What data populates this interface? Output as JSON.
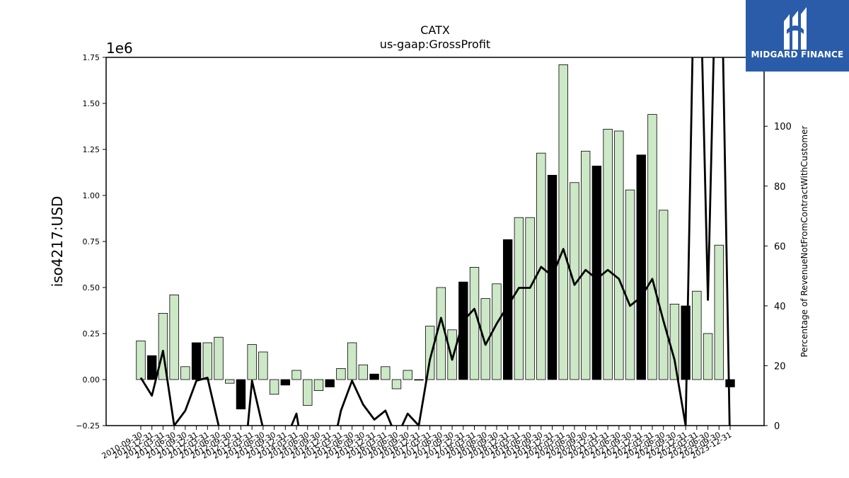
{
  "chart_data": {
    "type": "bar",
    "title": "CATX",
    "subtitle": "us-gaap:GrossProfit",
    "ylabel": "iso4217:USD",
    "y_offset_label": "1e6",
    "y2label": "Percentage of RevenueNotFromContractWithCustomer",
    "ylim": [
      -0.25,
      1.75
    ],
    "y2lim": [
      0,
      123
    ],
    "yticks": [
      "−0.25",
      "0.00",
      "0.25",
      "0.50",
      "0.75",
      "1.00",
      "1.25",
      "1.50",
      "1.75"
    ],
    "y2ticks": [
      "0",
      "20",
      "40",
      "60",
      "80",
      "100"
    ],
    "grid": false,
    "categories": [
      "2010-09-30",
      "2010-12-31",
      "2011-03-31",
      "2011-06-30",
      "2011-09-30",
      "2011-12-31",
      "2012-03-31",
      "2012-06-30",
      "2012-09-30",
      "2012-12-31",
      "2013-03-31",
      "2013-06-30",
      "2013-09-30",
      "2013-12-31",
      "2014-03-31",
      "2014-06-30",
      "2014-09-30",
      "2014-12-31",
      "2015-03-31",
      "2015-06-30",
      "2015-09-30",
      "2015-12-31",
      "2016-03-31",
      "2016-06-30",
      "2016-09-30",
      "2016-12-31",
      "2017-03-31",
      "2017-06-30",
      "2017-09-30",
      "2017-12-31",
      "2018-03-31",
      "2018-06-30",
      "2018-09-30",
      "2018-12-31",
      "2019-03-31",
      "2019-06-30",
      "2019-09-30",
      "2019-12-31",
      "2020-03-31",
      "2020-06-30",
      "2020-09-30",
      "2020-12-31",
      "2021-03-31",
      "2021-06-30",
      "2021-09-30",
      "2021-12-31",
      "2022-03-31",
      "2022-06-30",
      "2022-09-30",
      "2022-12-31",
      "2023-03-31",
      "2023-06-30",
      "2023-09-30",
      "2023-12-31"
    ],
    "values": [
      0.21,
      0.13,
      0.36,
      0.46,
      0.07,
      0.2,
      0.2,
      0.23,
      -0.02,
      -0.16,
      0.19,
      0.15,
      -0.08,
      -0.03,
      0.05,
      -0.14,
      -0.06,
      -0.04,
      0.06,
      0.2,
      0.08,
      0.03,
      0.07,
      -0.05,
      0.05,
      0.0,
      0.29,
      0.5,
      0.27,
      0.53,
      0.61,
      0.44,
      0.52,
      0.76,
      0.88,
      0.88,
      1.23,
      1.11,
      1.71,
      1.07,
      1.24,
      1.16,
      1.36,
      1.35,
      1.03,
      1.22,
      1.44,
      0.92,
      0.41,
      0.4,
      0.48,
      0.25,
      0.73,
      -0.04
    ],
    "highlight_indices": [
      1,
      5,
      9,
      13,
      17,
      21,
      29,
      33,
      37,
      41,
      45,
      49,
      53
    ],
    "bar_color": "#cce8c6",
    "highlight_color": "#000000",
    "line_color": "#000000",
    "line_series": [
      16,
      10,
      25,
      0,
      5,
      15,
      16,
      0,
      -10,
      -25,
      15,
      -1,
      -8,
      -5,
      4,
      -18,
      -15,
      -12,
      5,
      15,
      7,
      2,
      5,
      -4,
      4,
      0,
      22,
      36,
      22,
      35,
      39,
      27,
      34,
      40,
      46,
      46,
      53,
      50,
      59,
      47,
      52,
      49,
      52,
      49,
      40,
      43,
      49,
      35,
      22,
      0,
      200,
      42,
      200,
      -10
    ]
  },
  "logo": {
    "text": "MIDGARD FINANCE"
  }
}
